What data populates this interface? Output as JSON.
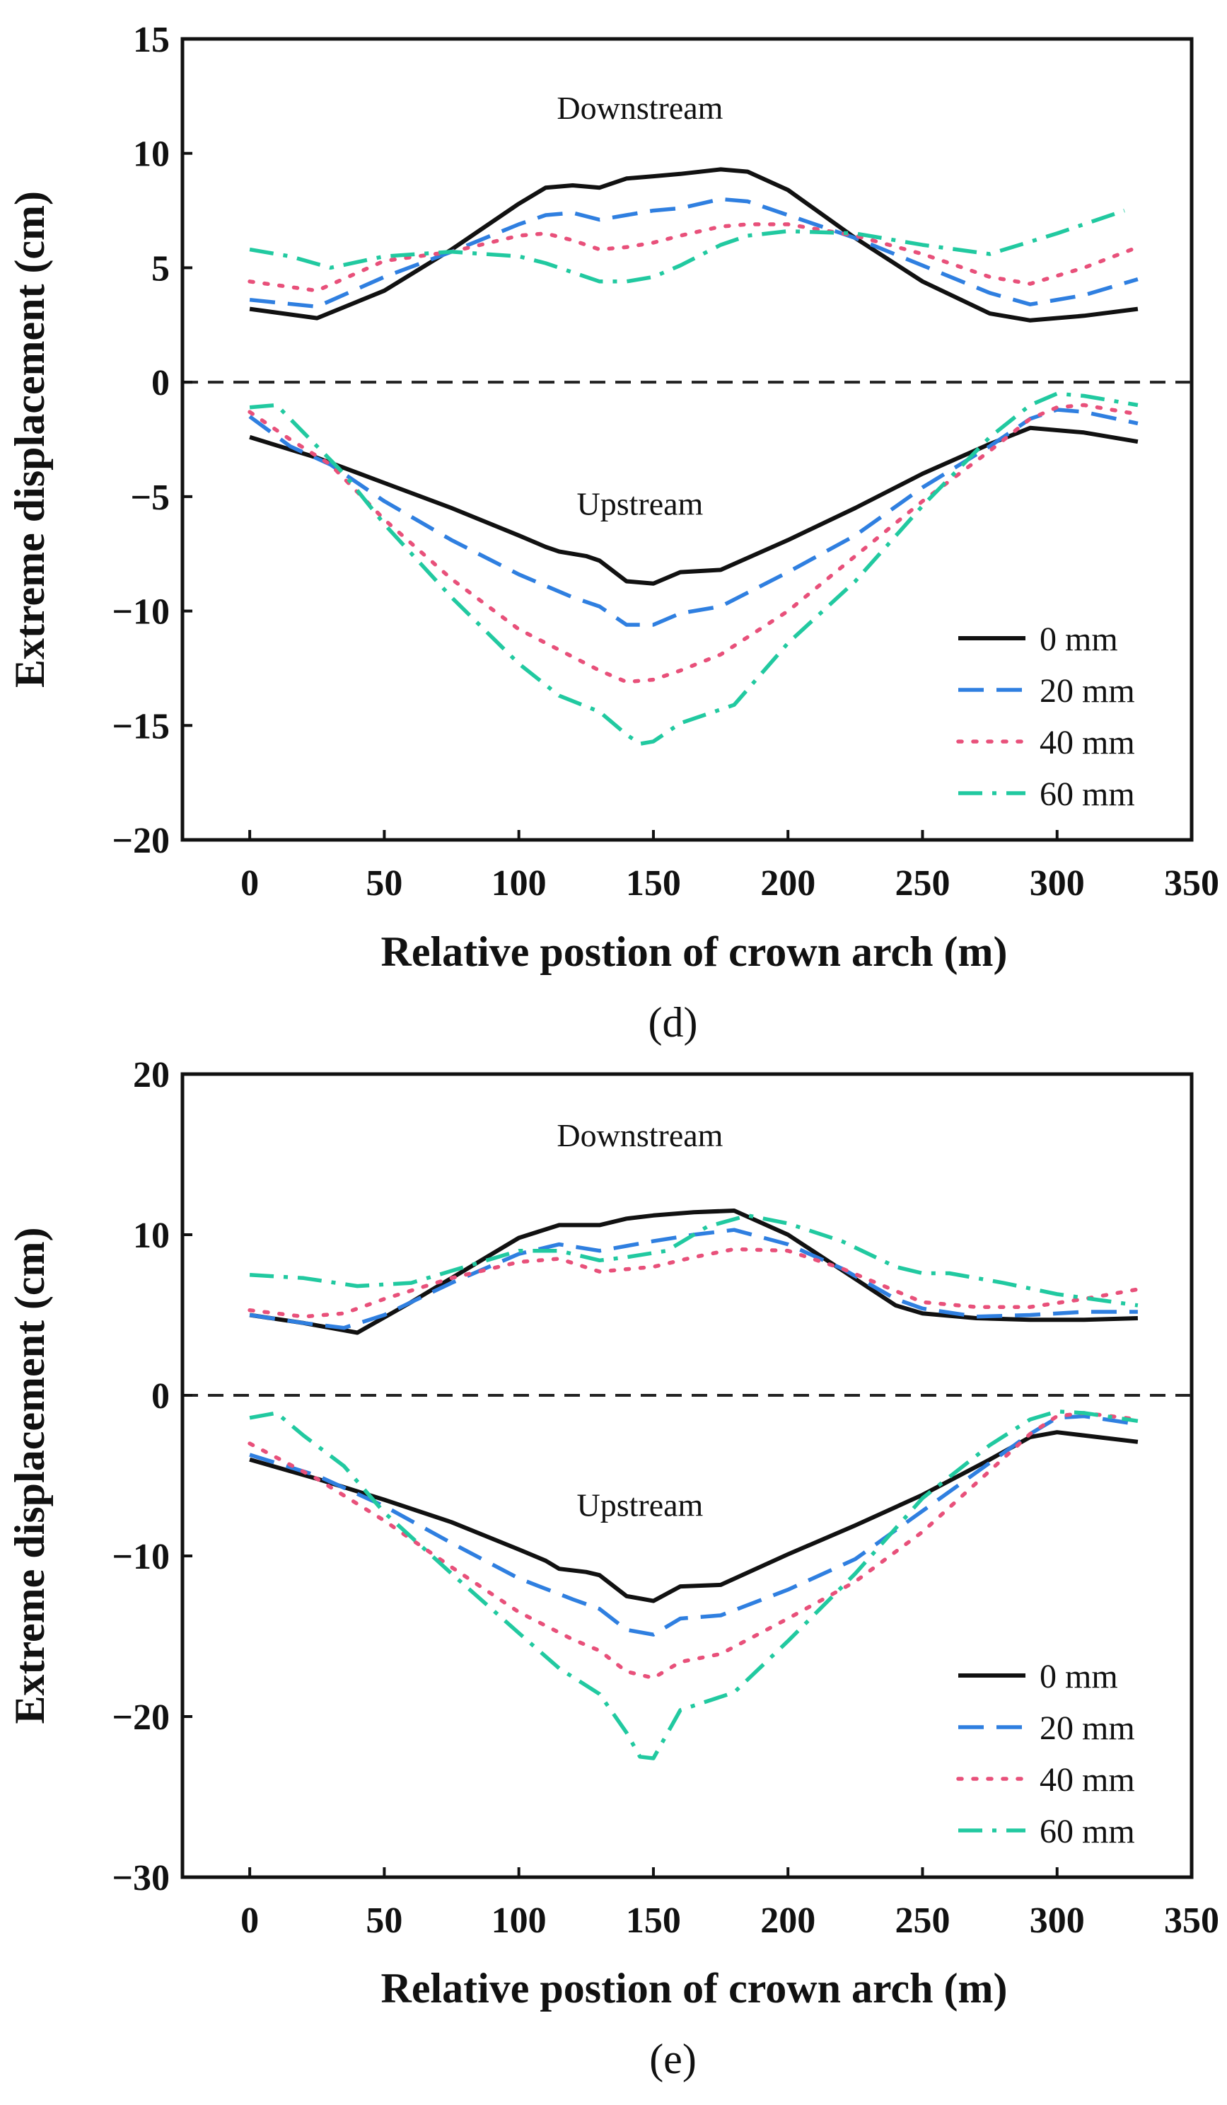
{
  "chart_data": [
    {
      "type": "line",
      "panel_label": "(d)",
      "xlabel": "Relative postion of crown arch (m)",
      "ylabel": "Extreme displacement (cm)",
      "xlim": [
        -25,
        350
      ],
      "ylim": [
        -20,
        15
      ],
      "xticks": [
        0,
        50,
        100,
        150,
        200,
        250,
        300,
        350
      ],
      "yticks": [
        -20,
        -15,
        -10,
        -5,
        0,
        5,
        10,
        15
      ],
      "xtick_labels": [
        "0",
        "50",
        "100",
        "150",
        "200",
        "250",
        "300",
        "350"
      ],
      "ytick_labels": [
        "−20",
        "−15",
        "−10",
        "−5",
        "0",
        "5",
        "10",
        "15"
      ],
      "reference_line": 0,
      "annotations": [
        {
          "text": "Downstream",
          "x": 145,
          "y": 11.5
        },
        {
          "text": "Upstream",
          "x": 145,
          "y": -5.8
        }
      ],
      "legend_position": "bottom-right",
      "series": [
        {
          "name": "0 mm",
          "color": "#111111",
          "dash": "solid",
          "x": [
            0,
            25,
            50,
            75,
            100,
            110,
            120,
            130,
            140,
            150,
            160,
            175,
            185,
            200,
            225,
            250,
            275,
            290,
            310,
            330
          ],
          "y": [
            3.2,
            2.8,
            4.0,
            5.8,
            7.8,
            8.5,
            8.6,
            8.5,
            8.9,
            9.0,
            9.1,
            9.3,
            9.2,
            8.4,
            6.3,
            4.4,
            3.0,
            2.7,
            2.9,
            3.2
          ]
        },
        {
          "name": "20 mm",
          "color": "#2f7fe0",
          "dash": "dash",
          "x": [
            0,
            25,
            50,
            75,
            100,
            110,
            120,
            130,
            140,
            150,
            160,
            175,
            185,
            200,
            225,
            250,
            275,
            290,
            310,
            330
          ],
          "y": [
            3.6,
            3.3,
            4.6,
            5.7,
            6.9,
            7.3,
            7.4,
            7.1,
            7.3,
            7.5,
            7.6,
            8.0,
            7.9,
            7.3,
            6.3,
            5.1,
            3.9,
            3.4,
            3.8,
            4.5
          ]
        },
        {
          "name": "40 mm",
          "color": "#e8507a",
          "dash": "dot",
          "x": [
            0,
            25,
            50,
            75,
            100,
            110,
            120,
            130,
            140,
            150,
            160,
            175,
            185,
            200,
            225,
            250,
            275,
            290,
            310,
            330
          ],
          "y": [
            4.4,
            4.0,
            5.3,
            5.7,
            6.4,
            6.5,
            6.2,
            5.8,
            5.9,
            6.1,
            6.4,
            6.8,
            6.9,
            6.9,
            6.4,
            5.6,
            4.6,
            4.3,
            5.0,
            5.9
          ]
        },
        {
          "name": "60 mm",
          "color": "#21c9a0",
          "dash": "dashdot",
          "x": [
            0,
            15,
            30,
            50,
            75,
            100,
            110,
            120,
            130,
            140,
            150,
            160,
            175,
            185,
            200,
            225,
            250,
            275,
            300,
            325
          ],
          "y": [
            5.8,
            5.5,
            5.0,
            5.5,
            5.7,
            5.5,
            5.2,
            4.8,
            4.4,
            4.4,
            4.6,
            5.1,
            6.0,
            6.4,
            6.6,
            6.5,
            6.0,
            5.6,
            6.5,
            7.5
          ]
        },
        {
          "name": "0 mm",
          "color": "#111111",
          "dash": "solid",
          "x": [
            0,
            25,
            50,
            75,
            100,
            110,
            115,
            125,
            130,
            140,
            150,
            160,
            175,
            200,
            225,
            250,
            275,
            290,
            310,
            330
          ],
          "y": [
            -2.4,
            -3.3,
            -4.4,
            -5.5,
            -6.7,
            -7.2,
            -7.4,
            -7.6,
            -7.8,
            -8.7,
            -8.8,
            -8.3,
            -8.2,
            -6.9,
            -5.5,
            -4.0,
            -2.7,
            -2.0,
            -2.2,
            -2.6
          ]
        },
        {
          "name": "20 mm",
          "color": "#2f7fe0",
          "dash": "dash",
          "x": [
            0,
            15,
            30,
            50,
            75,
            100,
            120,
            130,
            140,
            150,
            160,
            175,
            200,
            225,
            250,
            275,
            290,
            300,
            310,
            330
          ],
          "y": [
            -1.5,
            -2.8,
            -3.6,
            -5.2,
            -6.9,
            -8.4,
            -9.4,
            -9.8,
            -10.6,
            -10.6,
            -10.1,
            -9.8,
            -8.3,
            -6.7,
            -4.6,
            -2.8,
            -1.6,
            -1.2,
            -1.3,
            -1.8
          ]
        },
        {
          "name": "40 mm",
          "color": "#e8507a",
          "dash": "dot",
          "x": [
            0,
            15,
            30,
            50,
            75,
            100,
            120,
            130,
            140,
            150,
            160,
            175,
            200,
            225,
            250,
            275,
            290,
            300,
            310,
            330
          ],
          "y": [
            -1.3,
            -2.5,
            -3.6,
            -6.0,
            -8.6,
            -10.8,
            -12.0,
            -12.6,
            -13.1,
            -13.0,
            -12.6,
            -11.9,
            -10.0,
            -7.6,
            -5.2,
            -3.0,
            -1.6,
            -1.1,
            -1.0,
            -1.4
          ]
        },
        {
          "name": "60 mm",
          "color": "#21c9a0",
          "dash": "dashdot",
          "x": [
            0,
            10,
            20,
            35,
            50,
            75,
            100,
            115,
            130,
            140,
            145,
            150,
            160,
            180,
            200,
            225,
            250,
            275,
            290,
            300,
            310,
            330
          ],
          "y": [
            -1.1,
            -1.0,
            -2.2,
            -4.0,
            -6.2,
            -9.4,
            -12.3,
            -13.7,
            -14.4,
            -15.4,
            -15.8,
            -15.7,
            -14.9,
            -14.1,
            -11.4,
            -8.7,
            -5.4,
            -2.4,
            -1.0,
            -0.5,
            -0.6,
            -1.0
          ]
        }
      ]
    },
    {
      "type": "line",
      "panel_label": "(e)",
      "xlabel": "Relative postion of crown arch (m)",
      "ylabel": "Extreme displacement (cm)",
      "xlim": [
        -25,
        350
      ],
      "ylim": [
        -30,
        20
      ],
      "xticks": [
        0,
        50,
        100,
        150,
        200,
        250,
        300,
        350
      ],
      "yticks": [
        -30,
        -20,
        -10,
        0,
        10,
        20
      ],
      "xtick_labels": [
        "0",
        "50",
        "100",
        "150",
        "200",
        "250",
        "300",
        "350"
      ],
      "ytick_labels": [
        "−30",
        "−20",
        "−10",
        "0",
        "10",
        "20"
      ],
      "reference_line": 0,
      "annotations": [
        {
          "text": "Downstream",
          "x": 145,
          "y": 15.5
        },
        {
          "text": "Upstream",
          "x": 145,
          "y": -7.5
        }
      ],
      "legend_position": "bottom-right",
      "series": [
        {
          "name": "0 mm",
          "color": "#111111",
          "dash": "solid",
          "x": [
            0,
            20,
            40,
            60,
            80,
            100,
            115,
            130,
            140,
            150,
            165,
            180,
            200,
            220,
            240,
            250,
            270,
            290,
            310,
            330
          ],
          "y": [
            5.0,
            4.5,
            3.9,
            5.8,
            7.8,
            9.8,
            10.6,
            10.6,
            11.0,
            11.2,
            11.4,
            11.5,
            10.0,
            7.8,
            5.6,
            5.1,
            4.8,
            4.7,
            4.7,
            4.8
          ]
        },
        {
          "name": "20 mm",
          "color": "#2f7fe0",
          "dash": "dash",
          "x": [
            0,
            20,
            35,
            50,
            75,
            100,
            115,
            130,
            150,
            165,
            180,
            200,
            220,
            240,
            250,
            270,
            290,
            310,
            330
          ],
          "y": [
            5.0,
            4.5,
            4.2,
            5.0,
            7.0,
            8.8,
            9.4,
            9.0,
            9.6,
            10.0,
            10.3,
            9.4,
            7.9,
            6.0,
            5.4,
            4.9,
            5.0,
            5.2,
            5.2
          ]
        },
        {
          "name": "40 mm",
          "color": "#e8507a",
          "dash": "dot",
          "x": [
            0,
            20,
            35,
            50,
            75,
            100,
            115,
            130,
            150,
            165,
            180,
            200,
            220,
            240,
            250,
            270,
            290,
            310,
            330
          ],
          "y": [
            5.3,
            4.9,
            5.1,
            6.0,
            7.3,
            8.3,
            8.5,
            7.7,
            8.0,
            8.6,
            9.1,
            9.0,
            7.9,
            6.5,
            5.8,
            5.5,
            5.5,
            6.0,
            6.6
          ]
        },
        {
          "name": "60 mm",
          "color": "#21c9a0",
          "dash": "dashdot",
          "x": [
            0,
            20,
            40,
            60,
            80,
            100,
            115,
            130,
            140,
            155,
            170,
            185,
            200,
            220,
            240,
            250,
            260,
            280,
            300,
            330
          ],
          "y": [
            7.5,
            7.3,
            6.8,
            7.0,
            8.0,
            9.0,
            9.0,
            8.4,
            8.6,
            9.0,
            10.5,
            11.2,
            10.7,
            9.6,
            8.0,
            7.6,
            7.6,
            7.0,
            6.3,
            5.6
          ]
        },
        {
          "name": "0 mm",
          "color": "#111111",
          "dash": "solid",
          "x": [
            0,
            25,
            50,
            75,
            100,
            110,
            115,
            125,
            130,
            140,
            150,
            160,
            175,
            200,
            225,
            250,
            275,
            290,
            300,
            315,
            330
          ],
          "y": [
            -4.0,
            -5.2,
            -6.5,
            -7.9,
            -9.6,
            -10.3,
            -10.8,
            -11.0,
            -11.2,
            -12.5,
            -12.8,
            -11.9,
            -11.8,
            -9.9,
            -8.1,
            -6.2,
            -4.0,
            -2.6,
            -2.3,
            -2.6,
            -2.9
          ]
        },
        {
          "name": "20 mm",
          "color": "#2f7fe0",
          "dash": "dash",
          "x": [
            0,
            25,
            50,
            75,
            100,
            120,
            130,
            140,
            150,
            160,
            175,
            200,
            225,
            250,
            275,
            290,
            300,
            310,
            330
          ],
          "y": [
            -3.7,
            -5.0,
            -6.9,
            -9.2,
            -11.4,
            -12.7,
            -13.3,
            -14.6,
            -14.9,
            -13.9,
            -13.7,
            -12.1,
            -10.2,
            -7.2,
            -4.2,
            -2.4,
            -1.4,
            -1.3,
            -1.8
          ]
        },
        {
          "name": "40 mm",
          "color": "#e8507a",
          "dash": "dot",
          "x": [
            0,
            25,
            50,
            75,
            100,
            120,
            130,
            140,
            150,
            160,
            175,
            200,
            225,
            250,
            275,
            290,
            300,
            310,
            330
          ],
          "y": [
            -3.0,
            -5.2,
            -7.8,
            -10.7,
            -13.5,
            -15.2,
            -15.9,
            -17.2,
            -17.6,
            -16.6,
            -16.1,
            -13.9,
            -11.6,
            -8.5,
            -4.7,
            -2.4,
            -1.3,
            -1.1,
            -1.5
          ]
        },
        {
          "name": "60 mm",
          "color": "#21c9a0",
          "dash": "dashdot",
          "x": [
            0,
            10,
            20,
            35,
            50,
            75,
            100,
            115,
            130,
            140,
            145,
            150,
            160,
            180,
            200,
            225,
            250,
            275,
            290,
            300,
            310,
            330
          ],
          "y": [
            -1.4,
            -1.1,
            -2.5,
            -4.4,
            -7.3,
            -11.1,
            -14.8,
            -17.0,
            -18.6,
            -21.0,
            -22.5,
            -22.6,
            -19.6,
            -18.5,
            -15.3,
            -11.1,
            -6.4,
            -3.1,
            -1.5,
            -1.0,
            -1.1,
            -1.6
          ]
        }
      ]
    }
  ]
}
